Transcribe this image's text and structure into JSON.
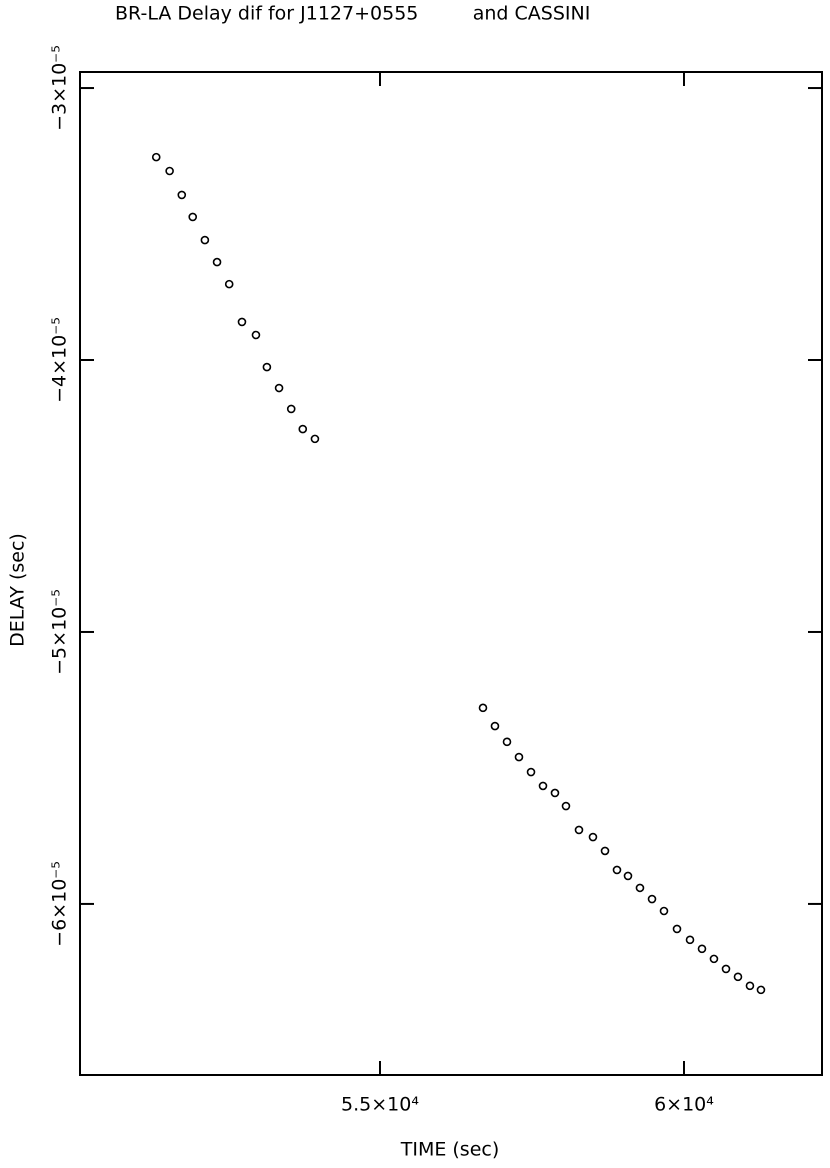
{
  "chart_data": {
    "type": "scatter",
    "title": "BR-LA Delay dif for J1127+0555         and CASSINI",
    "x_label": "TIME (sec)",
    "y_label": "DELAY (sec)",
    "x": [
      51320,
      51540,
      51740,
      51920,
      52120,
      52320,
      52520,
      52730,
      52960,
      53140,
      53340,
      53540,
      53730,
      53930,
      56694,
      56891,
      57089,
      57286,
      57484,
      57681,
      57878,
      58059,
      58273,
      58503,
      58701,
      58898,
      59079,
      59276,
      59474,
      59671,
      59885,
      60099,
      60296,
      60493,
      60691,
      60888,
      61085,
      61266
    ],
    "values": [
      -3.254e-05,
      -3.305e-05,
      -3.393e-05,
      -3.474e-05,
      -3.559e-05,
      -3.64e-05,
      -3.721e-05,
      -3.86e-05,
      -3.908e-05,
      -4.026e-05,
      -4.103e-05,
      -4.18e-05,
      -4.254e-05,
      -4.29e-05,
      -5.279e-05,
      -5.346e-05,
      -5.404e-05,
      -5.46e-05,
      -5.515e-05,
      -5.566e-05,
      -5.592e-05,
      -5.64e-05,
      -5.728e-05,
      -5.754e-05,
      -5.805e-05,
      -5.875e-05,
      -5.897e-05,
      -5.941e-05,
      -5.982e-05,
      -6.026e-05,
      -6.092e-05,
      -6.132e-05,
      -6.165e-05,
      -6.202e-05,
      -6.239e-05,
      -6.268e-05,
      -6.301e-05,
      -6.316e-05
    ],
    "color": "#000000",
    "xlim": [
      50066,
      62270
    ],
    "xticks": [
      {
        "value": 55000,
        "label": "5.5×10⁴"
      },
      {
        "value": 60000,
        "label": "6×10⁴"
      }
    ],
    "ylim": [
      -6.629e-05,
      -2.941e-05
    ],
    "yticks": [
      {
        "value": -3e-05,
        "label": "−3×10⁻⁵"
      },
      {
        "value": -4e-05,
        "label": "−4×10⁻⁵"
      },
      {
        "value": -5e-05,
        "label": "−5×10⁻⁵"
      },
      {
        "value": -6e-05,
        "label": "−6×10⁻⁵"
      }
    ]
  }
}
